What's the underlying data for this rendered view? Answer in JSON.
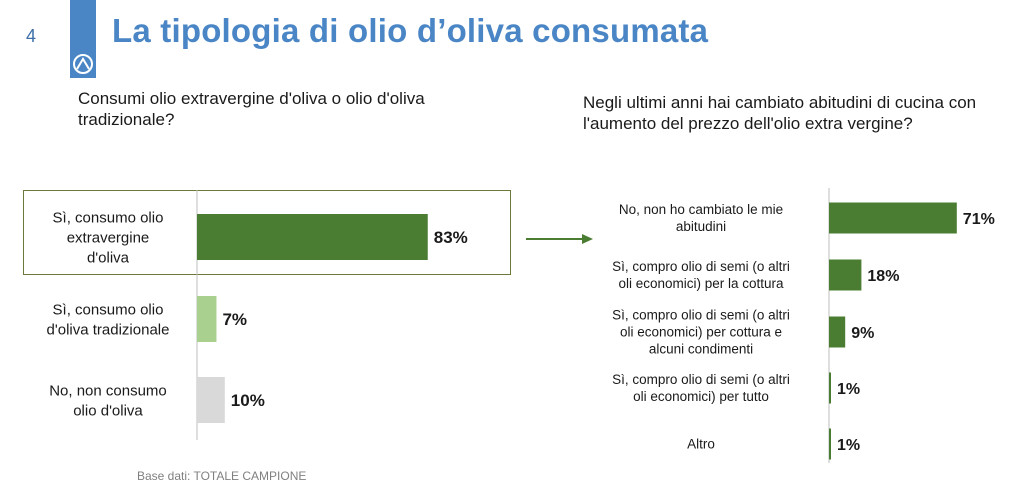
{
  "page_number": "4",
  "title": "La tipologia di olio d’oliva consumata",
  "footnote": "Base dati: TOTALE CAMPIONE",
  "icons": {
    "logo": "brand-logo-icon",
    "arrow": "arrow-right-icon"
  },
  "colors": {
    "accent": "#4a86c5",
    "dark_green": "#4a7d32",
    "light_green": "#a9d08e",
    "gray": "#d9d9d9"
  },
  "chart_data": [
    {
      "type": "bar",
      "orientation": "horizontal",
      "title": "Consumi olio extravergine d'oliva o olio d'oliva tradizionale?",
      "categories": [
        [
          "Sì, consumo olio",
          "extravergine",
          "d'oliva"
        ],
        [
          "Sì, consumo olio",
          "d'oliva tradizionale"
        ],
        [
          "No, non consumo",
          "olio d'oliva"
        ]
      ],
      "values": [
        83,
        7,
        10
      ],
      "value_labels": [
        "83%",
        "7%",
        "10%"
      ],
      "bar_colors": [
        "#4a7d32",
        "#a9d08e",
        "#d9d9d9"
      ],
      "unit": "%",
      "xlim": [
        0,
        100
      ]
    },
    {
      "type": "bar",
      "orientation": "horizontal",
      "title": "Negli ultimi anni hai cambiato abitudini di cucina con l'aumento del prezzo dell'olio extra vergine?",
      "categories": [
        [
          "No, non ho cambiato le mie",
          "abitudini"
        ],
        [
          "Sì, compro olio di semi (o altri",
          "oli economici) per la cottura"
        ],
        [
          "Sì, compro olio di semi (o altri",
          "oli economici) per cottura e",
          "alcuni condimenti"
        ],
        [
          "Sì, compro olio di semi (o altri",
          "oli economici) per tutto"
        ],
        [
          "Altro"
        ]
      ],
      "values": [
        71,
        18,
        9,
        1,
        1
      ],
      "value_labels": [
        "71%",
        "18%",
        "9%",
        "1%",
        "1%"
      ],
      "bar_colors": [
        "#4a7d32",
        "#4a7d32",
        "#4a7d32",
        "#4a7d32",
        "#4a7d32"
      ],
      "unit": "%",
      "xlim": [
        0,
        100
      ]
    }
  ]
}
